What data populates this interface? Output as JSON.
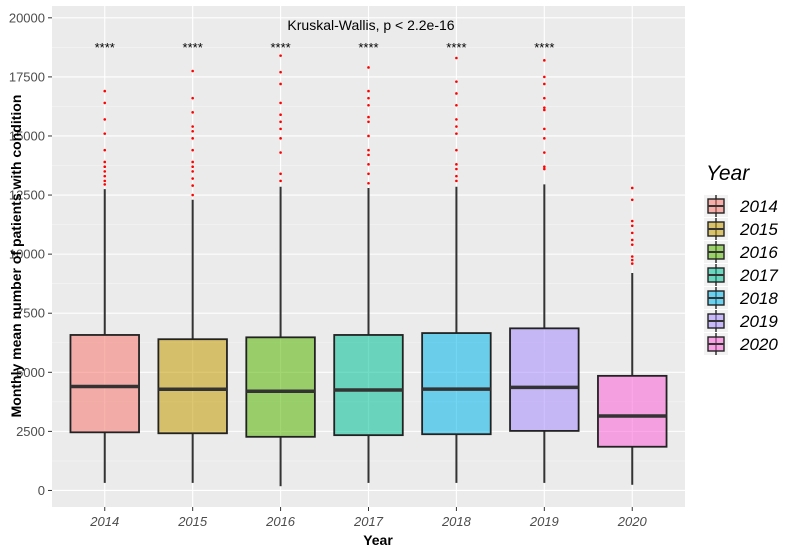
{
  "chart_data": {
    "type": "boxplot",
    "xlabel": "Year",
    "ylabel": "Monthly mean number of patients with condition",
    "annotation": "Kruskal-Wallis, p < 2.2e-16",
    "ylim": [
      -700,
      20500
    ],
    "y_ticks": [
      0,
      2500,
      5000,
      7500,
      10000,
      12500,
      15000,
      17500,
      20000
    ],
    "y_tick_labels": [
      "0",
      "2500",
      "5000",
      "7500",
      "10000",
      "12500",
      "15000",
      "17500",
      "20000"
    ],
    "categories": [
      "2014",
      "2015",
      "2016",
      "2017",
      "2018",
      "2019",
      "2020"
    ],
    "significance": [
      "****",
      "****",
      "****",
      "****",
      "****",
      "****",
      ""
    ],
    "grid": true,
    "legend_title": "Year",
    "legend_position": "right",
    "series": [
      {
        "name": "2014",
        "color": "#F8766D",
        "whisker_low": 320,
        "q1": 2460,
        "median": 4400,
        "q3": 6580,
        "whisker_high": 12750,
        "outliers": [
          12950,
          13100,
          13300,
          13500,
          13700,
          13900,
          14400,
          15100,
          15700,
          16400,
          16900
        ]
      },
      {
        "name": "2015",
        "color": "#C49A00",
        "whisker_low": 320,
        "q1": 2420,
        "median": 4280,
        "q3": 6400,
        "whisker_high": 12300,
        "outliers": [
          12500,
          12900,
          13200,
          13500,
          13700,
          13900,
          14400,
          14900,
          15200,
          15400,
          16000,
          16600,
          17750
        ]
      },
      {
        "name": "2016",
        "color": "#53B400",
        "whisker_low": 180,
        "q1": 2270,
        "median": 4200,
        "q3": 6480,
        "whisker_high": 12850,
        "outliers": [
          13100,
          13400,
          14300,
          14900,
          15300,
          15600,
          15900,
          16400,
          17200,
          17700,
          18400
        ]
      },
      {
        "name": "2017",
        "color": "#00C094",
        "whisker_low": 320,
        "q1": 2340,
        "median": 4250,
        "q3": 6580,
        "whisker_high": 12800,
        "outliers": [
          13000,
          13400,
          13800,
          14200,
          14400,
          15000,
          15600,
          15800,
          16300,
          16600,
          16900,
          17900
        ]
      },
      {
        "name": "2018",
        "color": "#00B6EB",
        "whisker_low": 320,
        "q1": 2380,
        "median": 4290,
        "q3": 6660,
        "whisker_high": 12850,
        "outliers": [
          13100,
          13300,
          13600,
          13800,
          14400,
          15100,
          15400,
          15700,
          16300,
          16800,
          17300,
          18300
        ]
      },
      {
        "name": "2019",
        "color": "#A58AFF",
        "whisker_low": 320,
        "q1": 2520,
        "median": 4360,
        "q3": 6860,
        "whisker_high": 12950,
        "outliers": [
          13600,
          13700,
          14300,
          14900,
          15300,
          16100,
          16200,
          16600,
          17200,
          17500,
          18200
        ]
      },
      {
        "name": "2020",
        "color": "#FB61D7",
        "whisker_low": 240,
        "q1": 1850,
        "median": 3150,
        "q3": 4850,
        "whisker_high": 9200,
        "outliers": [
          9600,
          9750,
          9900,
          10400,
          10600,
          10900,
          11200,
          11400,
          12300,
          12800
        ]
      }
    ]
  }
}
